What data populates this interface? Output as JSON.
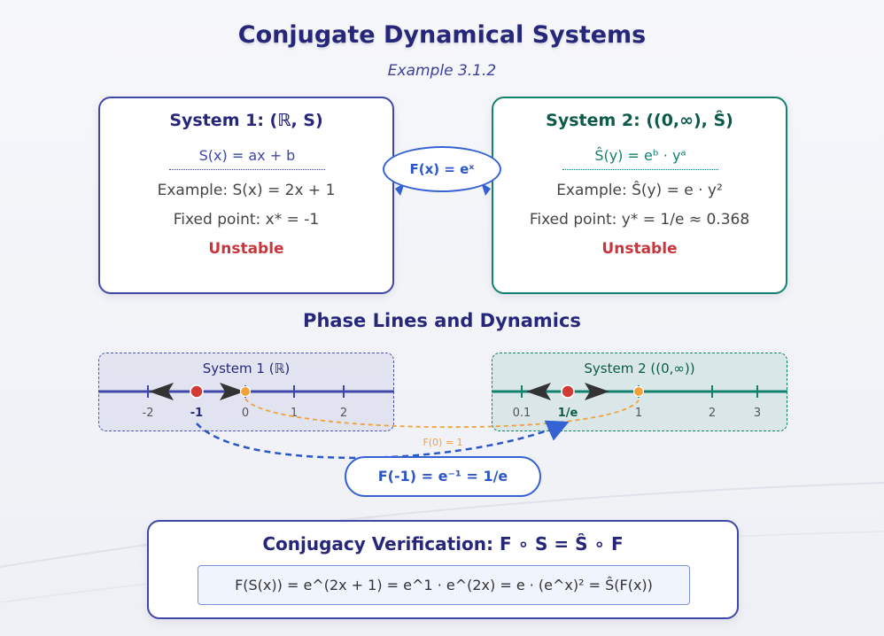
{
  "header": {
    "title": "Conjugate Dynamical Systems",
    "subtitle": "Example 3.1.2"
  },
  "system1": {
    "title": "System 1: (ℝ, S)",
    "map": "S(x) = ax + b",
    "example": "Example: S(x) = 2x + 1",
    "fixed_point": "Fixed point: x* = -1",
    "stability": "Unstable"
  },
  "system2": {
    "title": "System 2: ((0,∞), Ŝ)",
    "map": "Ŝ(y) = eᵇ · yᵃ",
    "example": "Example: Ŝ(y) = e · y²",
    "fixed_point": "Fixed point: y* = 1/e ≈ 0.368",
    "stability": "Unstable"
  },
  "conjugacy_map": "F(x) = eˣ",
  "phase_section": {
    "title": "Phase Lines and Dynamics",
    "line1": {
      "label": "System 1 (ℝ)",
      "ticks": [
        "-2",
        "-1",
        "0",
        "1",
        "2"
      ]
    },
    "line2": {
      "label": "System 2 ((0,∞))",
      "ticks": [
        "0.1",
        "1/e",
        "1",
        "2",
        "3"
      ]
    },
    "orange_label": "F(0) = 1",
    "mapping_label": "F(-1) = e⁻¹ = 1/e"
  },
  "verification": {
    "title": "Conjugacy Verification: F ∘ S = Ŝ ∘ F",
    "equation": "F(S(x)) = e^(2x + 1) = e^1 · e^(2x) = e · (e^x)² = Ŝ(F(x))"
  },
  "colors": {
    "navy": "#26277a",
    "indigo": "#3f47a8",
    "teal": "#128170",
    "blue": "#2b56c7",
    "red": "#c8363d",
    "orange": "#f0a13a"
  }
}
